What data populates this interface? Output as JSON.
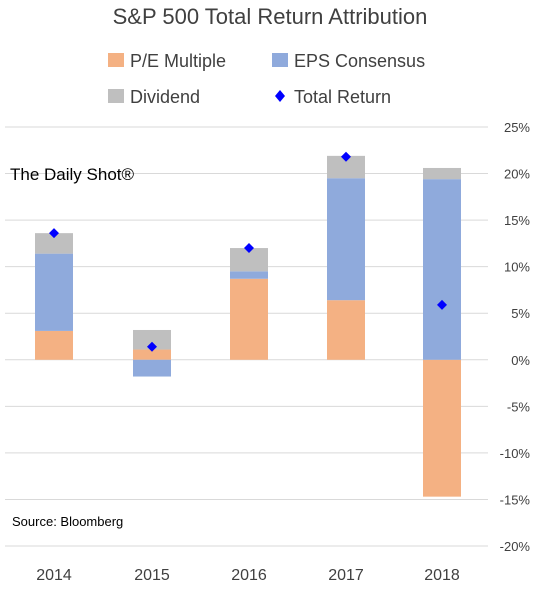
{
  "chart_data": {
    "type": "bar",
    "stacked": true,
    "title": "S&P 500 Total Return Attribution",
    "watermark": "The Daily Shot®",
    "source": "Source: Bloomberg",
    "categories": [
      "2014",
      "2015",
      "2016",
      "2017",
      "2018"
    ],
    "series": [
      {
        "name": "P/E Multiple",
        "color": "#f4b183",
        "values": [
          3.1,
          1.1,
          8.7,
          6.4,
          -14.7
        ]
      },
      {
        "name": "EPS Consensus",
        "color": "#8faadc",
        "values": [
          8.3,
          -1.8,
          0.8,
          13.1,
          19.4
        ]
      },
      {
        "name": "Dividend",
        "color": "#bfbfbf",
        "values": [
          2.2,
          2.1,
          2.5,
          2.4,
          1.2
        ]
      }
    ],
    "markers": {
      "name": "Total Return",
      "color": "#0000ff",
      "values": [
        13.6,
        1.4,
        12.0,
        21.8,
        5.9
      ]
    },
    "y_axis": {
      "min": -20,
      "max": 25,
      "step": 5,
      "tick_labels": [
        "25%",
        "20%",
        "15%",
        "10%",
        "5%",
        "0%",
        "-5%",
        "-10%",
        "-15%",
        "-20%"
      ],
      "position": "right"
    },
    "grid": true,
    "legend_position": "top"
  }
}
